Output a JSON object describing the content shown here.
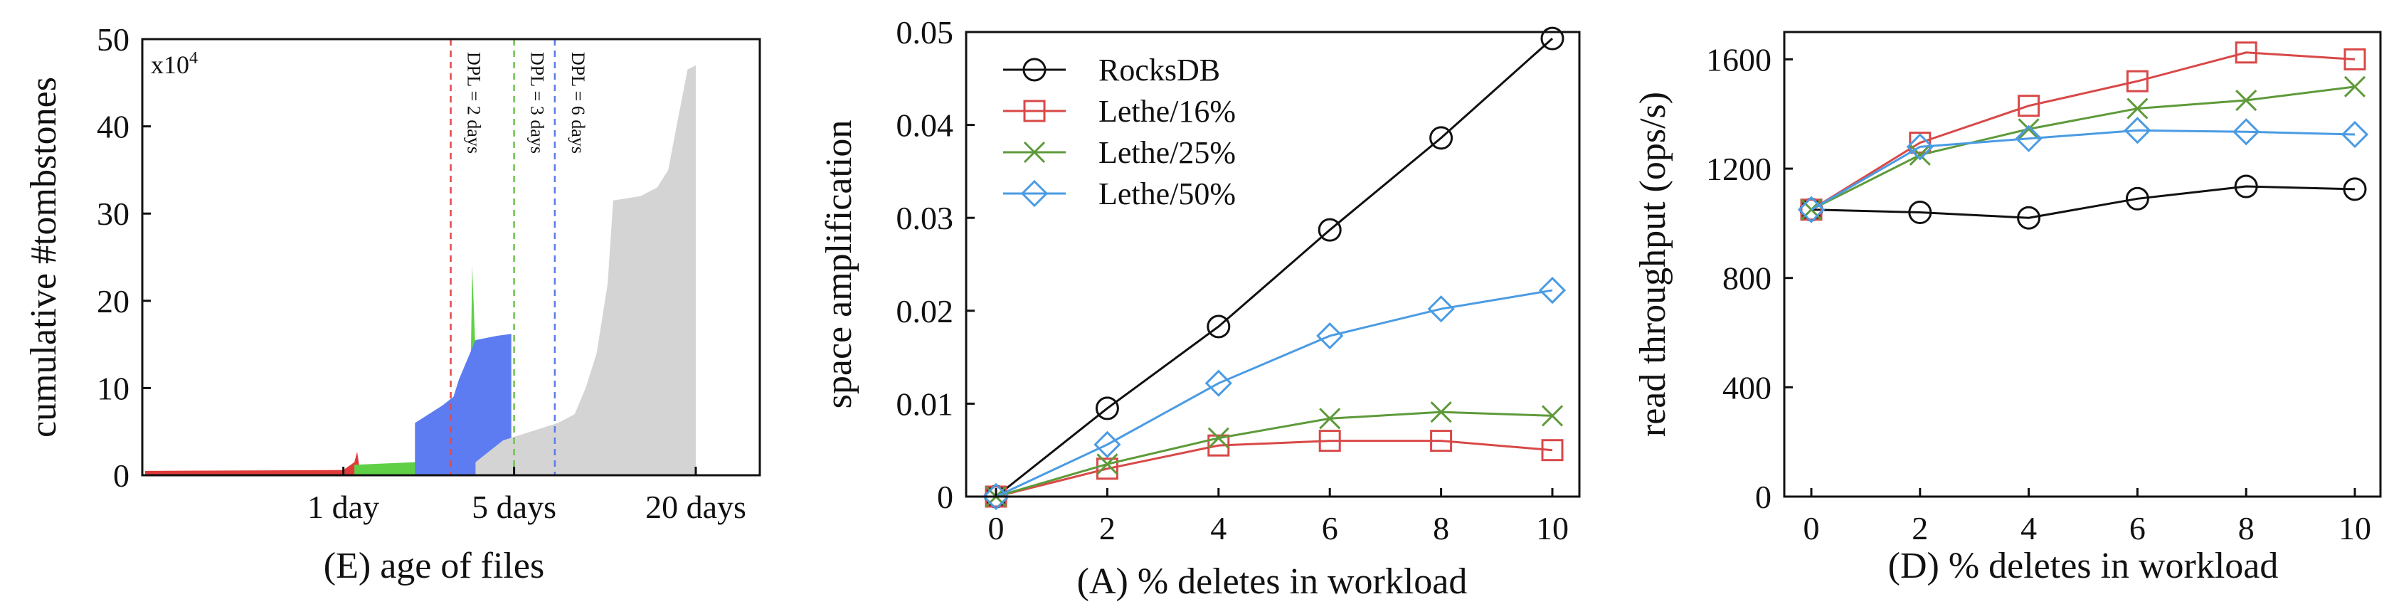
{
  "chart_data": [
    {
      "type": "area",
      "title": "",
      "xlabel": "(E) age of files",
      "ylabel": "cumulative #tombstones",
      "y_multiplier": "x10",
      "y_multiplier_exp": "4",
      "ylim": [
        0,
        50
      ],
      "yticks": [
        "0",
        "10",
        "20",
        "30",
        "40",
        "50"
      ],
      "xticks": [
        {
          "label": "1 day",
          "pos": 0.36
        },
        {
          "label": "5 days",
          "pos": 0.67
        },
        {
          "label": "20 days",
          "pos": 1.0
        }
      ],
      "dpl_lines": [
        {
          "label": "DPL = 2 days",
          "pos": 0.555,
          "color": "#e34a4a"
        },
        {
          "label": "DPL = 3 days",
          "pos": 0.67,
          "color": "#6ec24c"
        },
        {
          "label": "DPL = 6 days",
          "pos": 0.744,
          "color": "#5b7bef"
        }
      ],
      "series": [
        {
          "color": "#e03a3a",
          "points": [
            [
              0.0,
              0.5
            ],
            [
              0.36,
              0.6
            ],
            [
              0.38,
              1.5
            ],
            [
              0.385,
              2.7
            ],
            [
              0.39,
              0.6
            ],
            [
              0.44,
              0.7
            ]
          ]
        },
        {
          "color": "#5fd046",
          "points": [
            [
              0.38,
              1.2
            ],
            [
              0.49,
              1.5
            ],
            [
              0.5,
              2.5
            ],
            [
              0.57,
              2.5
            ],
            [
              0.59,
              7
            ],
            [
              0.594,
              24
            ],
            [
              0.6,
              14
            ],
            [
              0.61,
              2
            ]
          ]
        },
        {
          "color": "#5d7cf2",
          "points": [
            [
              0.49,
              6
            ],
            [
              0.54,
              8
            ],
            [
              0.56,
              9
            ],
            [
              0.57,
              11
            ],
            [
              0.6,
              15.5
            ],
            [
              0.64,
              16
            ],
            [
              0.665,
              16.2
            ],
            [
              0.665,
              4
            ]
          ]
        },
        {
          "color": "#d4d4d4",
          "points": [
            [
              0.6,
              1.5
            ],
            [
              0.65,
              4
            ],
            [
              0.7,
              5
            ],
            [
              0.75,
              6
            ],
            [
              0.78,
              7
            ],
            [
              0.8,
              10
            ],
            [
              0.82,
              14
            ],
            [
              0.83,
              18
            ],
            [
              0.84,
              22
            ],
            [
              0.85,
              31.5
            ],
            [
              0.9,
              32
            ],
            [
              0.93,
              33
            ],
            [
              0.95,
              35
            ],
            [
              0.965,
              40
            ],
            [
              0.985,
              46.5
            ],
            [
              1.0,
              47
            ]
          ]
        }
      ]
    },
    {
      "type": "line",
      "title": "",
      "xlabel": "(A) % deletes in workload",
      "ylabel": "space amplification",
      "x": [
        0,
        2,
        4,
        6,
        8,
        10
      ],
      "xlim": [
        0,
        10
      ],
      "ylim": [
        0,
        0.05
      ],
      "yticks": [
        "0",
        "0.01",
        "0.02",
        "0.03",
        "0.04",
        "0.05"
      ],
      "legend_position": "top-left",
      "series": [
        {
          "name": "RocksDB",
          "marker": "circle",
          "color": "#111111",
          "values": [
            0,
            0.0095,
            0.0183,
            0.0287,
            0.0386,
            0.0493
          ]
        },
        {
          "name": "Lethe/16%",
          "marker": "square",
          "color": "#d94848",
          "values": [
            0,
            0.003,
            0.0055,
            0.006,
            0.006,
            0.005
          ]
        },
        {
          "name": "Lethe/25%",
          "marker": "x",
          "color": "#5e9a3a",
          "values": [
            0,
            0.0035,
            0.0063,
            0.0084,
            0.0091,
            0.0087
          ]
        },
        {
          "name": "Lethe/50%",
          "marker": "diamond",
          "color": "#4b9be3",
          "values": [
            0,
            0.0056,
            0.0122,
            0.0173,
            0.0202,
            0.0222
          ]
        }
      ]
    },
    {
      "type": "line",
      "title": "",
      "xlabel": "(D) % deletes in workload",
      "ylabel": "read throughput (ops/s)",
      "x": [
        0,
        2,
        4,
        6,
        8,
        10
      ],
      "xlim": [
        0,
        10
      ],
      "ylim": [
        0,
        1700
      ],
      "yticks": [
        "0",
        "400",
        "800",
        "1200",
        "1600"
      ],
      "series": [
        {
          "name": "RocksDB",
          "marker": "circle",
          "color": "#111111",
          "values": [
            1050,
            1040,
            1020,
            1090,
            1135,
            1125
          ]
        },
        {
          "name": "Lethe/16%",
          "marker": "square",
          "color": "#d94848",
          "values": [
            1050,
            1295,
            1430,
            1520,
            1625,
            1600
          ]
        },
        {
          "name": "Lethe/25%",
          "marker": "x",
          "color": "#5e9a3a",
          "values": [
            1050,
            1250,
            1345,
            1420,
            1450,
            1500
          ]
        },
        {
          "name": "Lethe/50%",
          "marker": "diamond",
          "color": "#4b9be3",
          "values": [
            1050,
            1280,
            1310,
            1340,
            1335,
            1325
          ]
        }
      ]
    }
  ]
}
